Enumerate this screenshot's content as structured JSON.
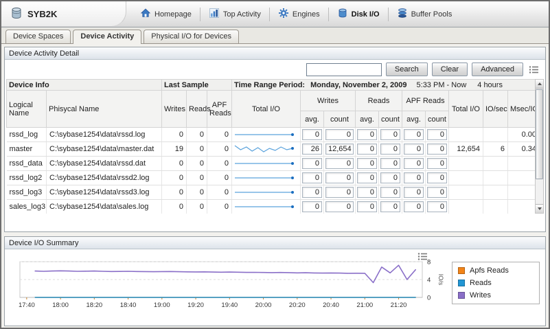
{
  "window": {
    "title": "SYB2K"
  },
  "nav": {
    "items": [
      {
        "label": "Homepage"
      },
      {
        "label": "Top Activity"
      },
      {
        "label": "Engines"
      },
      {
        "label": "Disk I/O",
        "active": true
      },
      {
        "label": "Buffer Pools"
      }
    ]
  },
  "tabs": [
    {
      "label": "Device Spaces"
    },
    {
      "label": "Device Activity",
      "active": true
    },
    {
      "label": "Physical I/O for Devices"
    }
  ],
  "detail": {
    "title": "Device Activity Detail",
    "search": {
      "value": "",
      "button": "Search",
      "clear": "Clear",
      "advanced": "Advanced"
    },
    "group_headers": {
      "device_info": "Device Info",
      "last_sample": "Last Sample",
      "time_range_label": "Time Range Period:",
      "time_range_date": "Monday, November 2, 2009",
      "time_range_span": "5:33 PM - Now",
      "time_range_duration": "4 hours"
    },
    "columns": {
      "logical": "Logical Name",
      "physical": "Phisycal Name",
      "writes": "Writes",
      "reads": "Reads",
      "apf_reads": "APF Reads",
      "total_io_chart": "Total I/O",
      "writes_group": "Writes",
      "reads_group": "Reads",
      "apf_group": "APF Reads",
      "avg": "avg.",
      "count": "count",
      "total_io": "Total I/O",
      "io_sec": "IO/sec",
      "msec_io": "Msec/IO"
    },
    "rows": [
      {
        "logical": "rssd_log",
        "physical": "C:\\sybase1254\\data\\rssd.log",
        "writes": "0",
        "reads": "0",
        "apf_reads": "0",
        "spark": [
          0,
          0,
          0,
          0,
          0,
          0,
          0,
          0
        ],
        "w_avg": "0",
        "w_count": "0",
        "r_avg": "0",
        "r_count": "0",
        "a_avg": "0",
        "a_count": "0",
        "total_io": "",
        "io_sec": "",
        "msec_io": "0.00"
      },
      {
        "logical": "master",
        "physical": "C:\\sybase1254\\data\\master.dat",
        "writes": "19",
        "reads": "0",
        "apf_reads": "0",
        "spark": [
          6.1,
          5.5,
          5.9,
          5.3,
          5.8,
          5.2,
          5.7,
          5.4,
          5.9,
          5.5,
          5.7
        ],
        "w_avg": "26",
        "w_count": "12,654",
        "r_avg": "0",
        "r_count": "0",
        "a_avg": "0",
        "a_count": "0",
        "total_io": "12,654",
        "io_sec": "6",
        "msec_io": "0.34"
      },
      {
        "logical": "rssd_data",
        "physical": "C:\\sybase1254\\data\\rssd.dat",
        "writes": "0",
        "reads": "0",
        "apf_reads": "0",
        "spark": [
          0,
          0,
          0,
          0,
          0,
          0,
          0,
          0
        ],
        "w_avg": "0",
        "w_count": "0",
        "r_avg": "0",
        "r_count": "0",
        "a_avg": "0",
        "a_count": "0",
        "total_io": "",
        "io_sec": "",
        "msec_io": ""
      },
      {
        "logical": "rssd_log2",
        "physical": "C:\\sybase1254\\data\\rssd2.log",
        "writes": "0",
        "reads": "0",
        "apf_reads": "0",
        "spark": [
          0,
          0,
          0,
          0,
          0,
          0,
          0,
          0
        ],
        "w_avg": "0",
        "w_count": "0",
        "r_avg": "0",
        "r_count": "0",
        "a_avg": "0",
        "a_count": "0",
        "total_io": "",
        "io_sec": "",
        "msec_io": ""
      },
      {
        "logical": "rssd_log3",
        "physical": "C:\\sybase1254\\data\\rssd3.log",
        "writes": "0",
        "reads": "0",
        "apf_reads": "0",
        "spark": [
          0,
          0,
          0,
          0,
          0,
          0,
          0,
          0
        ],
        "w_avg": "0",
        "w_count": "0",
        "r_avg": "0",
        "r_count": "0",
        "a_avg": "0",
        "a_count": "0",
        "total_io": "",
        "io_sec": "",
        "msec_io": ""
      },
      {
        "logical": "sales_log3",
        "physical": "C:\\sybase1254\\data\\sales.log",
        "writes": "0",
        "reads": "0",
        "apf_reads": "0",
        "spark": [
          0,
          0,
          0,
          0,
          0,
          0,
          0,
          0
        ],
        "w_avg": "0",
        "w_count": "0",
        "r_avg": "0",
        "r_count": "0",
        "a_avg": "0",
        "a_count": "0",
        "total_io": "",
        "io_sec": "",
        "msec_io": ""
      }
    ]
  },
  "summary": {
    "title": "Device I/O Summary"
  },
  "chart_data": {
    "type": "line",
    "title": "Device I/O Summary",
    "ylabel": "IO/s",
    "ylim": [
      0,
      8
    ],
    "yticks": [
      0,
      4,
      8
    ],
    "x_ticks": [
      "17:40",
      "18:00",
      "18:20",
      "18:40",
      "19:00",
      "19:20",
      "19:40",
      "20:00",
      "20:20",
      "20:40",
      "21:00",
      "21:20"
    ],
    "x_domain_minutes": [
      1056,
      1294
    ],
    "legend_position": "right",
    "grid": true,
    "series": [
      {
        "name": "Apfs Reads",
        "color": "#f28418",
        "start_min": 1065,
        "step_min": 225,
        "values": [
          0,
          0
        ]
      },
      {
        "name": "Reads",
        "color": "#2196d4",
        "start_min": 1065,
        "step_min": 225,
        "values": [
          0,
          0
        ]
      },
      {
        "name": "Writes",
        "color": "#8a6fc8",
        "start_min": 1065,
        "step_min": 5,
        "values": [
          5.9,
          5.85,
          5.9,
          5.95,
          5.9,
          5.85,
          5.88,
          5.9,
          5.85,
          5.8,
          5.82,
          5.85,
          5.8,
          5.78,
          5.75,
          5.78,
          5.8,
          5.75,
          5.72,
          5.7,
          5.72,
          5.68,
          5.65,
          5.68,
          5.65,
          5.6,
          5.62,
          5.58,
          5.55,
          5.58,
          5.55,
          5.5,
          5.52,
          5.48,
          5.45,
          5.48,
          5.45,
          5.4,
          5.42,
          5.4,
          3.3,
          6.8,
          5.5,
          7.2,
          4.0,
          6.2
        ]
      }
    ]
  }
}
